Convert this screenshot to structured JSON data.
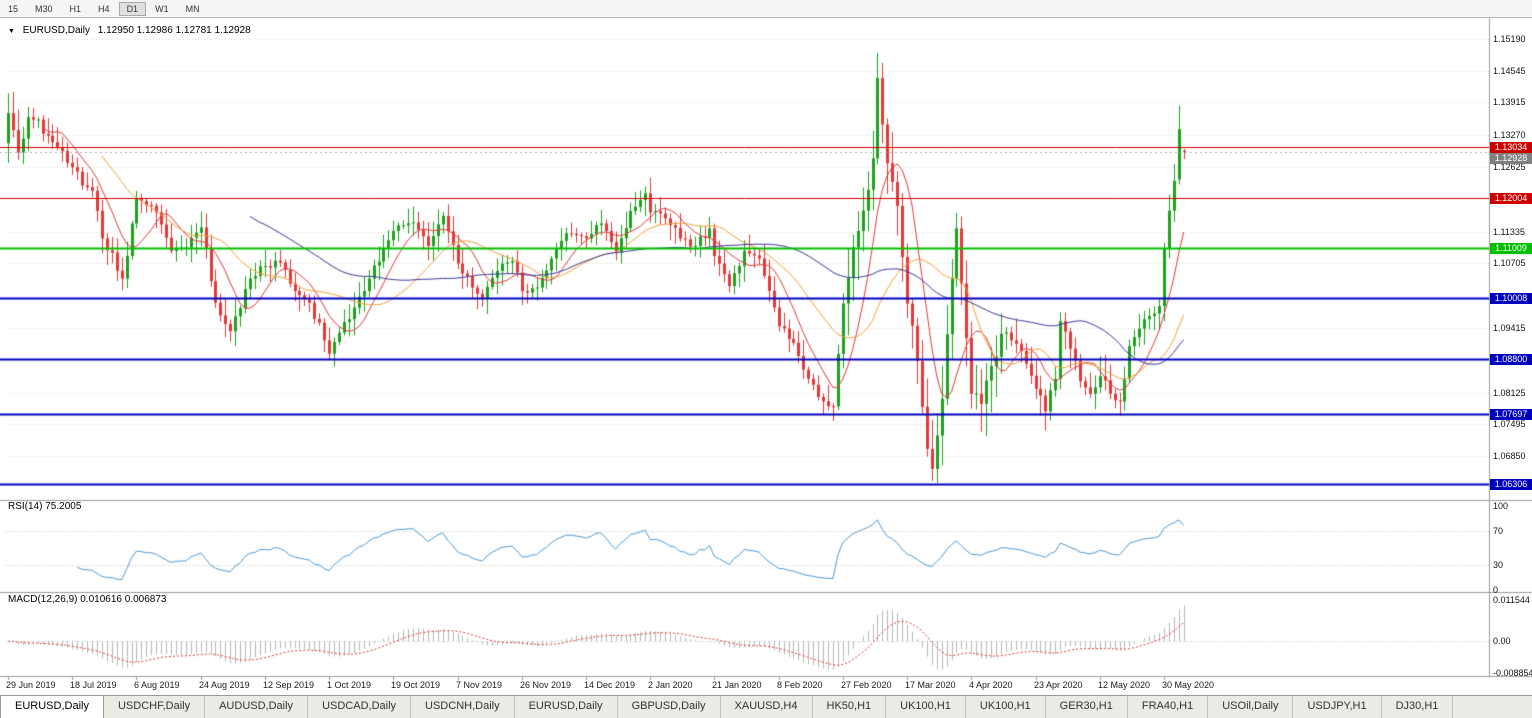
{
  "icons": {
    "dropdown": "▼"
  },
  "toolbar": {
    "timeframes": [
      "15",
      "M30",
      "H1",
      "H4",
      "D1",
      "W1",
      "MN"
    ],
    "active": "D1"
  },
  "chart": {
    "type": "candlestick",
    "symbol_label": "EURUSD,Daily",
    "ohlc_text": "1.12950 1.12986 1.12781 1.12928",
    "ohlc": {
      "open": "1.12950",
      "high": "1.12986",
      "low": "1.12781",
      "close": "1.12928"
    },
    "price_axis": {
      "ticks": [
        "1.15190",
        "1.14545",
        "1.13915",
        "1.13270",
        "1.12625",
        "1.11335",
        "1.10705",
        "1.09415",
        "1.08125",
        "1.07495",
        "1.06850"
      ]
    },
    "levels": [
      {
        "value": 1.13034,
        "label": "1.13034",
        "color": "#cf0000",
        "line_width": 1
      },
      {
        "value": 1.12004,
        "label": "1.12004",
        "color": "#cf0000",
        "line_width": 1
      },
      {
        "value": 1.11009,
        "label": "1.11009",
        "color": "#00c000",
        "line_width": 2
      },
      {
        "value": 1.10008,
        "label": "1.10008",
        "color": "#0000c0",
        "line_width": 2
      },
      {
        "value": 1.088,
        "label": "1.08800",
        "color": "#0000c0",
        "line_width": 2
      },
      {
        "value": 1.07697,
        "label": "1.07697",
        "color": "#0000c0",
        "line_width": 2
      },
      {
        "value": 1.06306,
        "label": "1.06306",
        "color": "#0000c0",
        "line_width": 2
      }
    ],
    "current_price": {
      "value": 1.12928,
      "label": "1.12928",
      "color": "#808080"
    },
    "date_labels": [
      "29 Jun 2019",
      "18 Jul 2019",
      "6 Aug 2019",
      "24 Aug 2019",
      "12 Sep 2019",
      "1 Oct 2019",
      "19 Oct 2019",
      "7 Nov 2019",
      "26 Nov 2019",
      "14 Dec 2019",
      "2 Jan 2020",
      "21 Jan 2020",
      "8 Feb 2020",
      "27 Feb 2020",
      "17 Mar 2020",
      "4 Apr 2020",
      "23 Apr 2020",
      "12 May 2020",
      "30 May 2020"
    ],
    "colors": {
      "up": "#1fa11f",
      "down": "#e23a3a",
      "grid": "#dcdcdc",
      "border": "#9a9a9a",
      "background": "#ffffff"
    },
    "mas": [
      {
        "period": 8,
        "color": "#e23a3a"
      },
      {
        "period": 20,
        "color": "#f2a33c"
      },
      {
        "period": 50,
        "color": "#3b3b9e"
      }
    ],
    "bar_count": 239,
    "candle_anchors": [
      [
        0,
        1.137
      ],
      [
        2,
        1.1292
      ],
      [
        4,
        1.1362
      ],
      [
        8,
        1.1325
      ],
      [
        13,
        1.1262
      ],
      [
        17,
        1.1215
      ],
      [
        19,
        1.112
      ],
      [
        23,
        1.104
      ],
      [
        24,
        1.1085
      ],
      [
        26,
        1.12
      ],
      [
        30,
        1.1172
      ],
      [
        33,
        1.1095
      ],
      [
        36,
        1.1102
      ],
      [
        39,
        1.1142
      ],
      [
        42,
        1.0992
      ],
      [
        45,
        1.0935
      ],
      [
        49,
        1.104
      ],
      [
        52,
        1.1065
      ],
      [
        55,
        1.1072
      ],
      [
        58,
        1.1015
      ],
      [
        61,
        1.0992
      ],
      [
        65,
        1.089
      ],
      [
        67,
        1.0932
      ],
      [
        70,
        1.0982
      ],
      [
        73,
        1.104
      ],
      [
        78,
        1.1135
      ],
      [
        82,
        1.1152
      ],
      [
        85,
        1.1105
      ],
      [
        88,
        1.1165
      ],
      [
        91,
        1.107
      ],
      [
        94,
        1.1022
      ],
      [
        96,
        1.1
      ],
      [
        99,
        1.1055
      ],
      [
        102,
        1.1075
      ],
      [
        104,
        1.1015
      ],
      [
        107,
        1.1022
      ],
      [
        110,
        1.108
      ],
      [
        113,
        1.113
      ],
      [
        117,
        1.112
      ],
      [
        120,
        1.115
      ],
      [
        123,
        1.1092
      ],
      [
        126,
        1.1175
      ],
      [
        129,
        1.121
      ],
      [
        130,
        1.1172
      ],
      [
        133,
        1.116
      ],
      [
        136,
        1.112
      ],
      [
        139,
        1.1105
      ],
      [
        142,
        1.114
      ],
      [
        143,
        1.1085
      ],
      [
        146,
        1.1025
      ],
      [
        149,
        1.1095
      ],
      [
        152,
        1.108
      ],
      [
        155,
        1.0982
      ],
      [
        156,
        1.0945
      ],
      [
        159,
        1.0912
      ],
      [
        162,
        1.084
      ],
      [
        165,
        1.0795
      ],
      [
        167,
        1.0785
      ],
      [
        169,
        1.099
      ],
      [
        172,
        1.1135
      ],
      [
        175,
        1.128
      ],
      [
        176,
        1.144
      ],
      [
        178,
        1.127
      ],
      [
        180,
        1.1185
      ],
      [
        182,
        1.099
      ],
      [
        184,
        1.0875
      ],
      [
        186,
        1.07
      ],
      [
        187,
        1.066
      ],
      [
        189,
        1.08
      ],
      [
        191,
        1.104
      ],
      [
        192,
        1.114
      ],
      [
        193,
        1.103
      ],
      [
        195,
        1.081
      ],
      [
        197,
        1.079
      ],
      [
        199,
        1.0865
      ],
      [
        201,
        1.093
      ],
      [
        204,
        1.091
      ],
      [
        206,
        1.087
      ],
      [
        208,
        1.082
      ],
      [
        210,
        1.0775
      ],
      [
        212,
        1.084
      ],
      [
        213,
        1.0955
      ],
      [
        215,
        1.09
      ],
      [
        217,
        1.0835
      ],
      [
        219,
        1.081
      ],
      [
        221,
        1.0845
      ],
      [
        223,
        1.081
      ],
      [
        225,
        1.0795
      ],
      [
        227,
        1.0905
      ],
      [
        229,
        1.094
      ],
      [
        231,
        1.0965
      ],
      [
        233,
        1.0985
      ],
      [
        234,
        1.11
      ],
      [
        236,
        1.1235
      ],
      [
        237,
        1.1338
      ],
      [
        238,
        1.12928
      ]
    ],
    "special_bars": {
      "176": {
        "high": 1.149
      },
      "187": {
        "low": 1.0636
      },
      "237": {
        "open": 1.1238,
        "high": 1.1385,
        "low": 1.1228,
        "close": 1.1338
      },
      "238": {
        "open": 1.1295,
        "high": 1.12986,
        "low": 1.12781,
        "close": 1.12928
      }
    }
  },
  "rsi": {
    "label": "RSI(14) 75.2005",
    "period": 14,
    "last_value": 75.2005,
    "color": "#4f9bd6",
    "levels": [
      70,
      30
    ],
    "ticks": [
      {
        "label": "100",
        "value": 100
      },
      {
        "label": "70",
        "value": 70
      },
      {
        "label": "30",
        "value": 30
      },
      {
        "label": "0",
        "value": 0
      }
    ]
  },
  "macd": {
    "label": "MACD(12,26,9) 0.010616 0.006873",
    "fast": 12,
    "slow": 26,
    "signal": 9,
    "main_value": 0.010616,
    "signal_value": 0.006873,
    "histogram_color": "#b8b8b8",
    "signal_color": "#e23a3a",
    "ticks": [
      {
        "label": "0.011544",
        "value": 0.011544
      },
      {
        "label": "0.00",
        "value": 0
      },
      {
        "label": "-0.008854",
        "value": -0.008854
      }
    ]
  },
  "tabs": {
    "active_index": 0,
    "items": [
      "EURUSD,Daily",
      "USDCHF,Daily",
      "AUDUSD,Daily",
      "USDCAD,Daily",
      "USDCNH,Daily",
      "EURUSD,Daily",
      "GBPUSD,Daily",
      "XAUUSD,H4",
      "HK50,H1",
      "UK100,H1",
      "UK100,H1",
      "GER30,H1",
      "FRA40,H1",
      "USOil,Daily",
      "USDJPY,H1",
      "DJ30,H1"
    ]
  }
}
